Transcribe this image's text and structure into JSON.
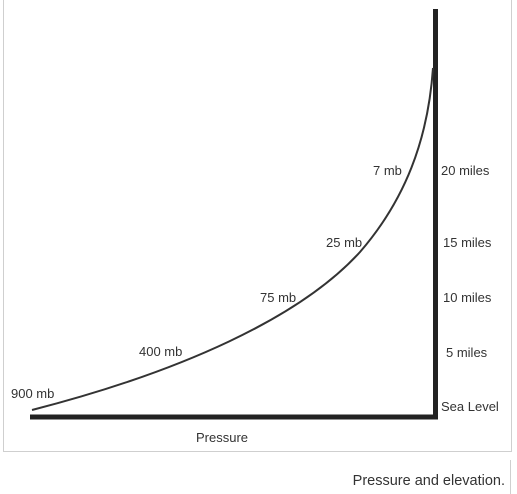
{
  "pressure_labels": [
    "900 mb",
    "400 mb",
    "75 mb",
    "25 mb",
    "7 mb"
  ],
  "altitude_labels": [
    "Sea Level",
    "5 miles",
    "10 miles",
    "15 miles",
    "20 miles"
  ],
  "x_axis_label": "Pressure",
  "caption": "Pressure and elevation.",
  "colors": {
    "curve": "#333333",
    "axes": "#222222",
    "text": "#333333",
    "frame": "#cfcfcf"
  }
}
